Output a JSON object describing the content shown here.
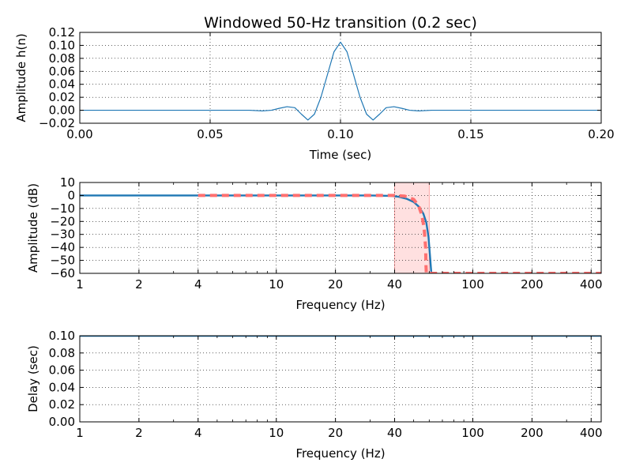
{
  "chart_data": [
    {
      "type": "line",
      "title": "Windowed 50-Hz transition (0.2 sec)",
      "xlabel": "Time (sec)",
      "ylabel": "Amplitude h(n)",
      "xlim": [
        0.0,
        0.2
      ],
      "ylim": [
        -0.02,
        0.12
      ],
      "grid": true,
      "xscale": "linear",
      "xticks": [
        0.0,
        0.05,
        0.1,
        0.15,
        0.2
      ],
      "xtick_labels": [
        "0.00",
        "0.05",
        "0.10",
        "0.15",
        "0.20"
      ],
      "yticks": [
        -0.02,
        0.0,
        0.02,
        0.04,
        0.06,
        0.08,
        0.1,
        0.12
      ],
      "ytick_labels": [
        "−0.02",
        "0.00",
        "0.02",
        "0.04",
        "0.06",
        "0.08",
        "0.10",
        "0.12"
      ],
      "series": [
        {
          "color": "#1f77b4",
          "x": [
            0.0,
            0.04,
            0.05,
            0.06,
            0.065,
            0.07,
            0.0735,
            0.0765,
            0.0795,
            0.0825,
            0.085,
            0.0875,
            0.09,
            0.0925,
            0.095,
            0.0975,
            0.1,
            0.1025,
            0.105,
            0.1075,
            0.11,
            0.1125,
            0.115,
            0.1175,
            0.1205,
            0.1235,
            0.1265,
            0.13,
            0.135,
            0.14,
            0.15,
            0.16,
            0.2
          ],
          "y": [
            0.0,
            0.0,
            0.0,
            0.0,
            0.0,
            -0.001,
            0.0,
            0.003,
            0.0055,
            0.004,
            -0.006,
            -0.015,
            -0.006,
            0.02,
            0.055,
            0.09,
            0.105,
            0.09,
            0.055,
            0.02,
            -0.006,
            -0.015,
            -0.006,
            0.004,
            0.0055,
            0.003,
            0.0,
            -0.001,
            0.0,
            0.0,
            0.0,
            0.0,
            0.0
          ]
        }
      ]
    },
    {
      "type": "line",
      "title": "",
      "xlabel": "Frequency (Hz)",
      "ylabel": "Amplitude (dB)",
      "xlim": [
        1,
        450
      ],
      "ylim": [
        -60,
        10
      ],
      "grid": true,
      "xscale": "log",
      "xticks": [
        1,
        2,
        4,
        10,
        20,
        40,
        100,
        200,
        400
      ],
      "xtick_labels": [
        "1",
        "2",
        "4",
        "10",
        "20",
        "40",
        "100",
        "200",
        "400"
      ],
      "yticks": [
        -60,
        -50,
        -40,
        -30,
        -20,
        -10,
        0,
        10
      ],
      "ytick_labels": [
        "−60",
        "−50",
        "−40",
        "−30",
        "−20",
        "−10",
        "0",
        "10"
      ],
      "shaded_region": {
        "x": [
          40,
          60
        ],
        "color": "#ffcccc"
      },
      "series": [
        {
          "style": "solid",
          "color": "#1f77b4",
          "x": [
            1,
            10,
            30,
            38,
            42,
            46,
            50,
            53,
            56,
            58,
            59.5,
            60.5,
            61.5
          ],
          "y": [
            0,
            0,
            0,
            -0.3,
            -1,
            -2.5,
            -5,
            -8.5,
            -14,
            -21,
            -32,
            -46,
            -60
          ]
        },
        {
          "style": "dashed",
          "color": "#ff7070",
          "x": [
            4,
            10,
            20,
            40,
            45,
            50,
            53,
            55,
            56.5,
            57.5,
            57.8,
            58,
            60,
            70,
            80,
            100,
            200,
            450
          ],
          "y": [
            0,
            0,
            0,
            0,
            -0.5,
            -3,
            -8,
            -15,
            -25,
            -40,
            -55,
            -60,
            -60,
            -60,
            -60,
            -60,
            -60,
            -60
          ]
        }
      ]
    },
    {
      "type": "line",
      "title": "",
      "xlabel": "Frequency (Hz)",
      "ylabel": "Delay (sec)",
      "xlim": [
        1,
        450
      ],
      "ylim": [
        0.0,
        0.1
      ],
      "grid": true,
      "xscale": "log",
      "xticks": [
        1,
        2,
        4,
        10,
        20,
        40,
        100,
        200,
        400
      ],
      "xtick_labels": [
        "1",
        "2",
        "4",
        "10",
        "20",
        "40",
        "100",
        "200",
        "400"
      ],
      "yticks": [
        0.0,
        0.02,
        0.04,
        0.06,
        0.08,
        0.1
      ],
      "ytick_labels": [
        "0.00",
        "0.02",
        "0.04",
        "0.06",
        "0.08",
        "0.10"
      ],
      "series": [
        {
          "style": "solid",
          "color": "#1f77b4",
          "x": [
            1,
            450
          ],
          "y": [
            0.1,
            0.1
          ]
        }
      ]
    }
  ]
}
